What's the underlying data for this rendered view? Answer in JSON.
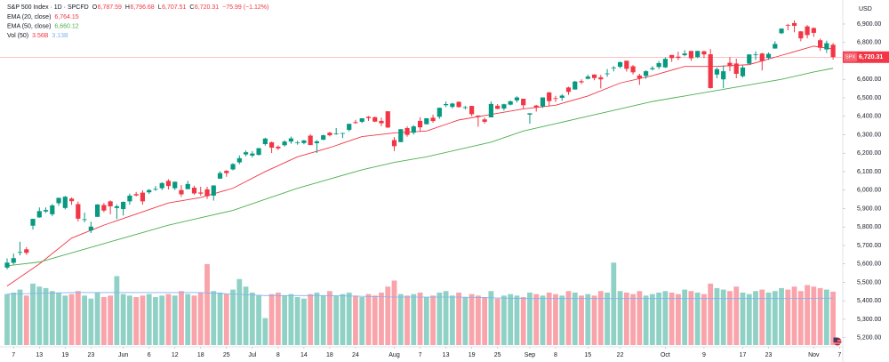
{
  "chart_data": {
    "type": "candlestick",
    "title": "S&P 500 Index · 1D · SPCFD",
    "ohlc_labels": [
      {
        "key": "O",
        "label": "6,787.59"
      },
      {
        "key": "H",
        "label": "6,796.68"
      },
      {
        "key": "L",
        "label": "6,707.51"
      },
      {
        "key": "C",
        "label": "6,720.31"
      }
    ],
    "change_label": "−75.99 (−1.12%)",
    "currency": "USD",
    "symbol": "SPX",
    "last": {
      "value": 6720.31,
      "label": "6,720.31"
    },
    "up_color": "#089981",
    "down_color": "#f23645",
    "grid": false,
    "open": [
      5580,
      5606,
      5663,
      5679,
      5807,
      5852,
      5884,
      5869,
      5929,
      5903,
      5954,
      5924,
      5842,
      5781,
      5855,
      5919,
      5939,
      5903,
      5897,
      5939,
      5978,
      5986,
      5988,
      6005,
      6010,
      6050,
      6010,
      6000,
      6005,
      6013,
      5987,
      6004,
      5970,
      6062,
      6104,
      6112,
      6150,
      6193,
      6187,
      6191,
      6249,
      6259,
      6235,
      6243,
      6263,
      6256,
      6255,
      6295,
      6254,
      6273,
      6311,
      6304,
      6307,
      6326,
      6368,
      6370,
      6397,
      6395,
      6375,
      6427,
      6271,
      6260,
      6336,
      6311,
      6375,
      6357,
      6392,
      6397,
      6460,
      6451,
      6478,
      6445,
      6456,
      6404,
      6383,
      6394,
      6457,
      6442,
      6463,
      6486,
      6495,
      6409,
      6458,
      6454,
      6529,
      6498,
      6500,
      6556,
      6545,
      6590,
      6603,
      6626,
      6611,
      6630,
      6660,
      6668,
      6701,
      6671,
      6621,
      6619,
      6655,
      6667,
      6665,
      6732,
      6723,
      6731,
      6754,
      6720,
      6752,
      6736,
      6626,
      6600,
      6690,
      6686,
      6617,
      6685,
      6731,
      6740,
      6716,
      6767,
      6850,
      6895,
      6905,
      6860,
      6887,
      6878,
      6812,
      6762,
      6787.59
    ],
    "high": [
      5630,
      5656,
      5720,
      5691,
      5845,
      5906,
      5906,
      5924,
      5958,
      5968,
      5960,
      5938,
      5878,
      5829,
      5924,
      5930,
      5944,
      5922,
      5938,
      5981,
      5990,
      5999,
      6006,
      6022,
      6043,
      6059,
      6046,
      6027,
      6050,
      6024,
      6018,
      6018,
      6026,
      6101,
      6108,
      6146,
      6188,
      6215,
      6211,
      6228,
      6284,
      6263,
      6242,
      6270,
      6290,
      6267,
      6272,
      6303,
      6271,
      6301,
      6316,
      6336,
      6310,
      6360,
      6381,
      6390,
      6401,
      6398,
      6393,
      6428,
      6287,
      6330,
      6346,
      6352,
      6395,
      6390,
      6409,
      6446,
      6480,
      6473,
      6481,
      6456,
      6456,
      6404,
      6393,
      6481,
      6466,
      6468,
      6486,
      6508,
      6495,
      6416,
      6462,
      6502,
      6532,
      6511,
      6520,
      6560,
      6592,
      6600,
      6626,
      6627,
      6624,
      6656,
      6672,
      6697,
      6701,
      6678,
      6630,
      6649,
      6672,
      6699,
      6718,
      6733,
      6750,
      6758,
      6754,
      6755,
      6756,
      6764,
      6664,
      6676,
      6720,
      6712,
      6675,
      6736,
      6752,
      6744,
      6746,
      6807,
      6876,
      6901,
      6920,
      6862,
      6894,
      6881,
      6821,
      6810,
      6796.68
    ],
    "low": [
      5570,
      5597,
      5646,
      5649,
      5786,
      5850,
      5876,
      5859,
      5915,
      5895,
      5920,
      5830,
      5826,
      5767,
      5855,
      5880,
      5869,
      5843,
      5862,
      5921,
      5966,
      5921,
      5979,
      5996,
      6000,
      6003,
      6000,
      5963,
      6005,
      5975,
      5970,
      5952,
      5943,
      6062,
      6072,
      6107,
      6140,
      6183,
      6177,
      6187,
      6241,
      6201,
      6217,
      6236,
      6251,
      6246,
      6248,
      6244,
      6201,
      6270,
      6291,
      6300,
      6282,
      6318,
      6360,
      6363,
      6375,
      6368,
      6346,
      6337,
      6212,
      6260,
      6289,
      6301,
      6317,
      6355,
      6365,
      6386,
      6450,
      6442,
      6446,
      6437,
      6400,
      6343,
      6360,
      6394,
      6438,
      6431,
      6459,
      6475,
      6441,
      6360,
      6425,
      6445,
      6454,
      6478,
      6484,
      6516,
      6545,
      6575,
      6600,
      6595,
      6551,
      6614,
      6643,
      6660,
      6642,
      6626,
      6570,
      6603,
      6648,
      6656,
      6662,
      6695,
      6704,
      6725,
      6700,
      6715,
      6715,
      6550,
      6606,
      6552,
      6644,
      6606,
      6610,
      6682,
      6705,
      6648,
      6706,
      6766,
      6845,
      6866,
      6855,
      6806,
      6822,
      6830,
      6755,
      6743,
      6707.51
    ],
    "close": [
      5607,
      5631,
      5664,
      5660,
      5844,
      5886,
      5892,
      5917,
      5958,
      5964,
      5940,
      5845,
      5842,
      5802,
      5922,
      5889,
      5912,
      5912,
      5936,
      5970,
      5971,
      5939,
      6000,
      6006,
      6038,
      6022,
      6045,
      5977,
      6033,
      5982,
      5981,
      5967,
      6025,
      6092,
      6092,
      6141,
      6173,
      6205,
      6198,
      6227,
      6279,
      6230,
      6226,
      6263,
      6280,
      6259,
      6269,
      6244,
      6264,
      6297,
      6297,
      6306,
      6309,
      6359,
      6363,
      6389,
      6390,
      6371,
      6362,
      6339,
      6238,
      6330,
      6299,
      6345,
      6340,
      6389,
      6374,
      6446,
      6466,
      6469,
      6450,
      6449,
      6411,
      6396,
      6370,
      6467,
      6440,
      6465,
      6481,
      6502,
      6460,
      6416,
      6448,
      6502,
      6482,
      6495,
      6512,
      6532,
      6588,
      6584,
      6615,
      6607,
      6600,
      6632,
      6664,
      6693,
      6657,
      6638,
      6605,
      6644,
      6661,
      6688,
      6711,
      6715,
      6716,
      6740,
      6714,
      6754,
      6735,
      6553,
      6655,
      6644,
      6671,
      6630,
      6664,
      6735,
      6735,
      6699,
      6738,
      6792,
      6875,
      6891,
      6890,
      6822,
      6840,
      6852,
      6771,
      6796,
      6720.31
    ],
    "overlays": [
      {
        "name": "EMA (20, close)",
        "label": "6,764.15",
        "color": "#f23645",
        "x": [
          0,
          5,
          10,
          15,
          20,
          25,
          30,
          35,
          40,
          45,
          50,
          55,
          60,
          65,
          70,
          75,
          80,
          85,
          90,
          95,
          100,
          105,
          110,
          115,
          120,
          125,
          128
        ],
        "values": [
          5480,
          5600,
          5740,
          5810,
          5870,
          5930,
          5960,
          6010,
          6100,
          6180,
          6230,
          6290,
          6310,
          6320,
          6380,
          6410,
          6440,
          6460,
          6510,
          6580,
          6620,
          6670,
          6670,
          6680,
          6730,
          6780,
          6764.15
        ]
      },
      {
        "name": "EMA (50, close)",
        "label": "6,660.12",
        "color": "#4caf50",
        "x": [
          0,
          5,
          10,
          15,
          20,
          25,
          30,
          35,
          40,
          45,
          50,
          55,
          60,
          65,
          70,
          75,
          80,
          85,
          90,
          95,
          100,
          105,
          110,
          115,
          120,
          125,
          128
        ],
        "values": [
          5590,
          5610,
          5660,
          5710,
          5760,
          5810,
          5850,
          5890,
          5950,
          6010,
          6060,
          6110,
          6150,
          6180,
          6220,
          6260,
          6320,
          6360,
          6400,
          6440,
          6480,
          6510,
          6540,
          6570,
          6600,
          6640,
          6660.12
        ]
      }
    ],
    "volume": {
      "name": "Vol (50)",
      "last_label": "3.56B",
      "ylim": [
        0,
        23
      ],
      "values": [
        3.4,
        3.5,
        3.7,
        3.3,
        4.1,
        3.9,
        3.8,
        3.6,
        3.5,
        3.3,
        3.4,
        3.6,
        3.3,
        3.1,
        3.5,
        3.2,
        3.3,
        4.6,
        3.4,
        3.3,
        3.2,
        3.3,
        3.4,
        3.2,
        3.3,
        3.4,
        3.3,
        3.6,
        3.4,
        3.3,
        3.5,
        5.4,
        3.6,
        3.5,
        3.4,
        3.7,
        4.4,
        3.9,
        3.5,
        3.3,
        1.8,
        3.4,
        3.5,
        3.3,
        3.4,
        3.2,
        3.1,
        3.4,
        3.5,
        3.3,
        3.6,
        3.3,
        3.4,
        3.5,
        3.3,
        3.2,
        3.4,
        3.3,
        3.5,
        3.9,
        4.3,
        3.4,
        3.3,
        3.4,
        3.5,
        3.2,
        3.3,
        3.5,
        3.6,
        3.3,
        3.5,
        3.2,
        3.4,
        3.3,
        3.2,
        3.6,
        3.1,
        3.3,
        3.4,
        3.3,
        3.2,
        3.5,
        3.4,
        3.3,
        3.5,
        3.4,
        3.3,
        3.6,
        3.5,
        3.3,
        3.4,
        3.3,
        3.6,
        3.5,
        5.5,
        3.6,
        3.5,
        3.4,
        3.6,
        3.3,
        3.4,
        3.5,
        3.6,
        3.5,
        3.4,
        3.7,
        3.6,
        3.5,
        3.4,
        4.1,
        3.8,
        3.7,
        3.6,
        3.9,
        3.5,
        3.4,
        3.6,
        3.7,
        3.5,
        3.6,
        3.8,
        3.7,
        3.9,
        3.6,
        4.0,
        3.9,
        3.8,
        3.7,
        3.56
      ],
      "ma": {
        "label": "3.13B",
        "color": "#7fb2f0",
        "x": [
          0,
          10,
          20,
          30,
          40,
          50,
          60,
          70,
          80,
          90,
          100,
          110,
          120,
          128
        ],
        "values": [
          3.4,
          3.5,
          3.5,
          3.5,
          3.3,
          3.3,
          3.2,
          3.2,
          3.1,
          3.1,
          3.1,
          3.1,
          3.1,
          3.13
        ]
      }
    },
    "xlim": [
      -1.1,
      129.5
    ],
    "xticks": [
      {
        "value": 1,
        "label": "7"
      },
      {
        "value": 5,
        "label": "13"
      },
      {
        "value": 9,
        "label": "19"
      },
      {
        "value": 13,
        "label": "23"
      },
      {
        "value": 18,
        "label": "Jun"
      },
      {
        "value": 22,
        "label": "6"
      },
      {
        "value": 26,
        "label": "12"
      },
      {
        "value": 30,
        "label": "18"
      },
      {
        "value": 34,
        "label": "25"
      },
      {
        "value": 38,
        "label": "Jul"
      },
      {
        "value": 42,
        "label": "8"
      },
      {
        "value": 46,
        "label": "14"
      },
      {
        "value": 50,
        "label": "18"
      },
      {
        "value": 54,
        "label": "24"
      },
      {
        "value": 60,
        "label": "Aug"
      },
      {
        "value": 64,
        "label": "7"
      },
      {
        "value": 68,
        "label": "13"
      },
      {
        "value": 72,
        "label": "19"
      },
      {
        "value": 76,
        "label": "25"
      },
      {
        "value": 81,
        "label": "Sep"
      },
      {
        "value": 85,
        "label": "8"
      },
      {
        "value": 90,
        "label": "15"
      },
      {
        "value": 95,
        "label": "22"
      },
      {
        "value": 102,
        "label": "Oct"
      },
      {
        "value": 108,
        "label": "9"
      },
      {
        "value": 114,
        "label": "17"
      },
      {
        "value": 118,
        "label": "23"
      },
      {
        "value": 125,
        "label": "Nov"
      },
      {
        "value": 129,
        "label": "7"
      }
    ],
    "ylim": [
      5160,
      7030
    ],
    "yticks": [
      {
        "value": 5200,
        "label": "5,200.00"
      },
      {
        "value": 5300,
        "label": "5,300.00"
      },
      {
        "value": 5400,
        "label": "5,400.00"
      },
      {
        "value": 5500,
        "label": "5,500.00"
      },
      {
        "value": 5600,
        "label": "5,600.00"
      },
      {
        "value": 5700,
        "label": "5,700.00"
      },
      {
        "value": 5800,
        "label": "5,800.00"
      },
      {
        "value": 5900,
        "label": "5,900.00"
      },
      {
        "value": 6000,
        "label": "6,000.00"
      },
      {
        "value": 6100,
        "label": "6,100.00"
      },
      {
        "value": 6200,
        "label": "6,200.00"
      },
      {
        "value": 6300,
        "label": "6,300.00"
      },
      {
        "value": 6400,
        "label": "6,400.00"
      },
      {
        "value": 6500,
        "label": "6,500.00"
      },
      {
        "value": 6600,
        "label": "6,600.00"
      },
      {
        "value": 6700,
        "label": "6,700.00"
      },
      {
        "value": 6800,
        "label": "6,800.00"
      },
      {
        "value": 6900,
        "label": "6,900.00"
      }
    ]
  }
}
